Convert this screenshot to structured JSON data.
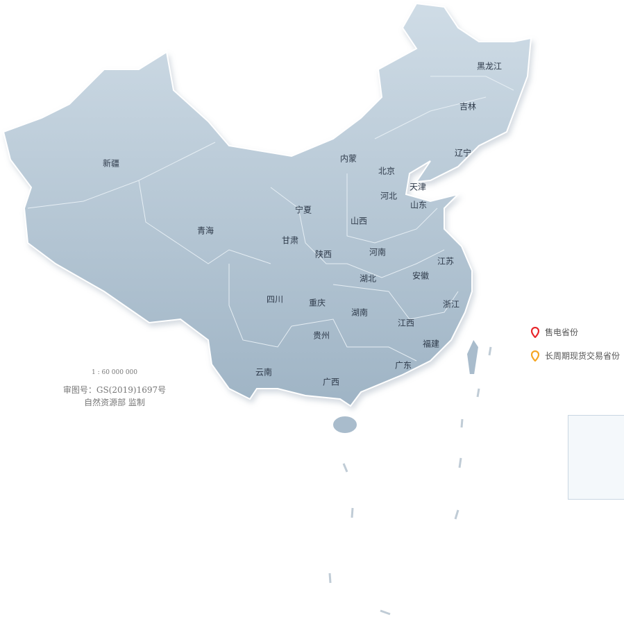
{
  "provinces": [
    "黑龙江",
    "吉林",
    "辽宁",
    "内蒙",
    "北京",
    "天津",
    "河北",
    "山东",
    "新疆",
    "宁夏",
    "山西",
    "青海",
    "甘肃",
    "陕西",
    "河南",
    "江苏",
    "安徽",
    "湖北",
    "四川",
    "重庆",
    "浙江",
    "湖南",
    "江西",
    "贵州",
    "福建",
    "云南",
    "广西",
    "广东"
  ],
  "legend": [
    {
      "label": "售电省份",
      "icon": "map-pin-icon",
      "color": "#e8262b"
    },
    {
      "label": "长周期现货交易省份",
      "icon": "map-pin-icon",
      "color": "#f5a623"
    }
  ],
  "scale": "1 : 60 000 000",
  "approval": "审图号：GS(2019)1697号",
  "publisher": "自然资源部 监制",
  "colors": {
    "land": "#b8cad8",
    "border": "#ffffff"
  }
}
